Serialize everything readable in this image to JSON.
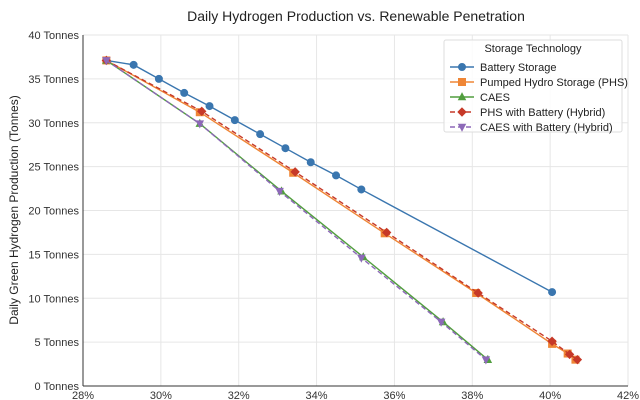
{
  "chart_data": {
    "type": "line",
    "title": "Daily Hydrogen Production vs. Renewable Penetration",
    "xlabel": "",
    "ylabel": "Daily Green Hydrogen Production (Tonnes)",
    "xlim": [
      28,
      42
    ],
    "ylim": [
      0,
      40
    ],
    "x_ticks": [
      28,
      30,
      32,
      34,
      36,
      38,
      40,
      42
    ],
    "x_tick_labels": [
      "28%",
      "30%",
      "32%",
      "34%",
      "36%",
      "38%",
      "40%",
      "42%"
    ],
    "y_ticks": [
      0,
      5,
      10,
      15,
      20,
      25,
      30,
      35,
      40
    ],
    "y_tick_labels": [
      "0 Tonnes",
      "5 Tonnes",
      "10 Tonnes",
      "15 Tonnes",
      "20 Tonnes",
      "25 Tonnes",
      "30 Tonnes",
      "35 Tonnes",
      "40 Tonnes"
    ],
    "grid": true,
    "legend": {
      "title": "Storage Technology",
      "placement": "top-right"
    },
    "series": [
      {
        "name": "Battery Storage",
        "color": "#3a76af",
        "marker": "circle",
        "line": "solid",
        "x": [
          28.6,
          29.3,
          29.95,
          30.6,
          31.25,
          31.9,
          32.55,
          33.2,
          33.85,
          34.5,
          35.15,
          40.05
        ],
        "y": [
          37.1,
          36.6,
          35.0,
          33.4,
          31.9,
          30.3,
          28.7,
          27.1,
          25.5,
          24.0,
          22.4,
          10.7
        ]
      },
      {
        "name": "Pumped Hydro Storage (PHS)",
        "color": "#ef8636",
        "marker": "square",
        "line": "solid",
        "x": [
          28.6,
          31.0,
          33.4,
          35.75,
          38.1,
          40.05,
          40.45,
          40.65
        ],
        "y": [
          37.1,
          31.2,
          24.3,
          17.4,
          10.6,
          4.8,
          3.7,
          3.0
        ]
      },
      {
        "name": "CAES",
        "color": "#519e3e",
        "marker": "triangle-up",
        "line": "solid",
        "x": [
          28.6,
          31.0,
          33.1,
          35.2,
          37.25,
          38.4
        ],
        "y": [
          37.1,
          29.9,
          22.2,
          14.7,
          7.3,
          3.0
        ]
      },
      {
        "name": "PHS with Battery (Hybrid)",
        "color": "#c63928",
        "marker": "diamond",
        "line": "dashed",
        "x": [
          28.6,
          31.05,
          33.45,
          35.8,
          38.15,
          40.05,
          40.5,
          40.7
        ],
        "y": [
          37.1,
          31.3,
          24.4,
          17.5,
          10.6,
          5.1,
          3.6,
          3.0
        ]
      },
      {
        "name": "CAES with Battery (Hybrid)",
        "color": "#8d69b8",
        "marker": "triangle-down",
        "line": "dashed",
        "x": [
          28.6,
          31.0,
          33.05,
          35.15,
          37.2,
          38.35
        ],
        "y": [
          37.1,
          29.9,
          22.2,
          14.6,
          7.3,
          3.0
        ]
      }
    ]
  }
}
